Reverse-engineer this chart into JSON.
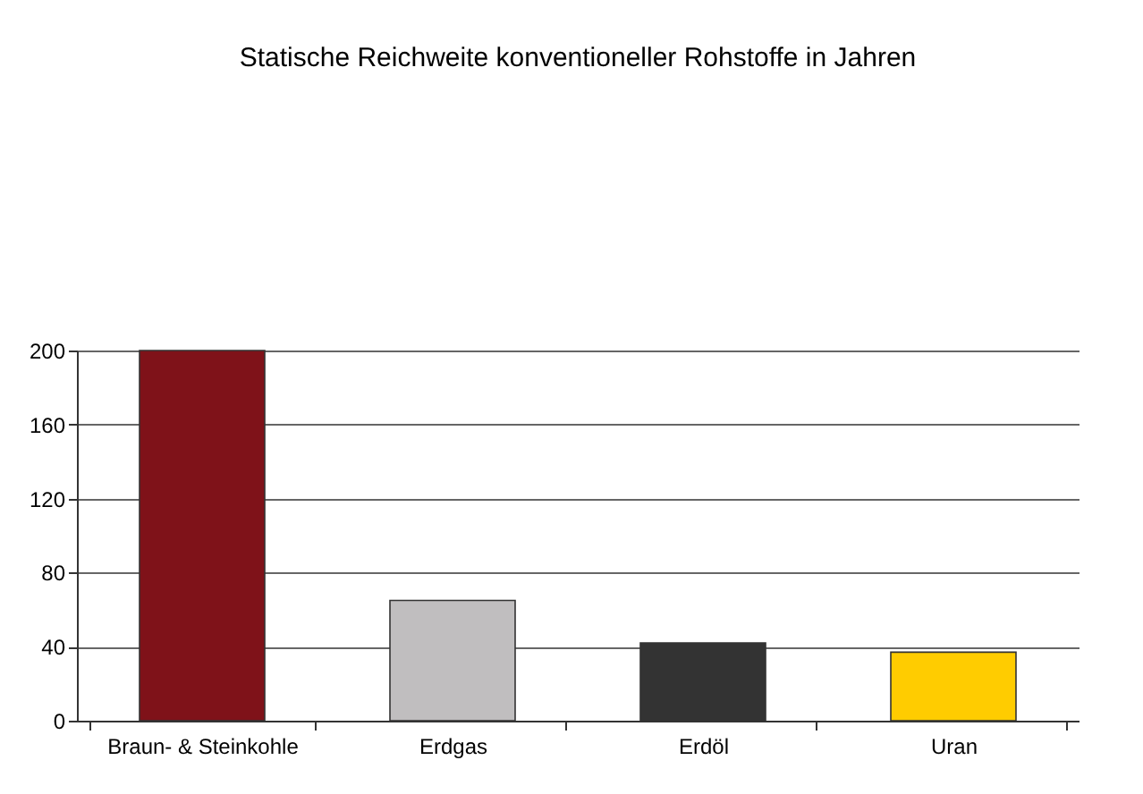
{
  "chart_data": {
    "type": "bar",
    "title": "Statische Reichweite konventioneller Rohstoffe in Jahren",
    "categories": [
      "Braun- & Steinkohle",
      "Erdgas",
      "Erdöl",
      "Uran"
    ],
    "values": [
      200,
      65,
      42,
      37
    ],
    "colors": [
      "#7f1219",
      "#c0bebf",
      "#333333",
      "#ffcc00"
    ],
    "ylim": [
      0,
      200
    ],
    "yticks": [
      0,
      40,
      80,
      120,
      160,
      200
    ],
    "grid": "y"
  }
}
